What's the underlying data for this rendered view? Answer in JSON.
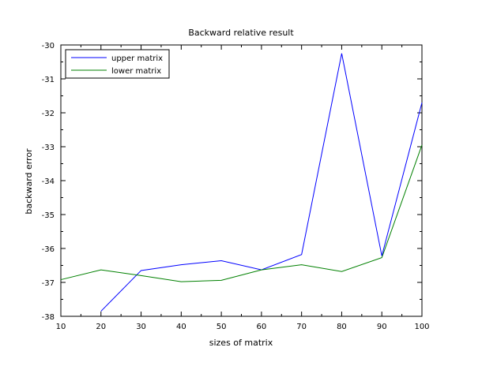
{
  "chart_data": {
    "type": "line",
    "title": "Backward relative result",
    "xlabel": "sizes of matrix",
    "ylabel": "backward error",
    "xlim": [
      10,
      100
    ],
    "ylim": [
      -38,
      -30
    ],
    "xticks": [
      10,
      20,
      30,
      40,
      50,
      60,
      70,
      80,
      90,
      100
    ],
    "yticks": [
      -38,
      -37,
      -36,
      -35,
      -34,
      -33,
      -32,
      -31,
      -30
    ],
    "x": [
      10,
      20,
      30,
      40,
      50,
      60,
      70,
      80,
      90,
      100
    ],
    "series": [
      {
        "name": "upper matrix",
        "color": "#0000ff",
        "values": [
          null,
          -37.85,
          -36.65,
          -36.48,
          -36.36,
          -36.63,
          -36.18,
          -30.25,
          -36.22,
          -31.7
        ]
      },
      {
        "name": "lower matrix",
        "color": "#008000",
        "values": [
          -36.92,
          -36.63,
          -36.8,
          -36.98,
          -36.94,
          -36.63,
          -36.48,
          -36.68,
          -36.27,
          -32.95
        ]
      }
    ],
    "legend": "top-left",
    "grid": false
  }
}
